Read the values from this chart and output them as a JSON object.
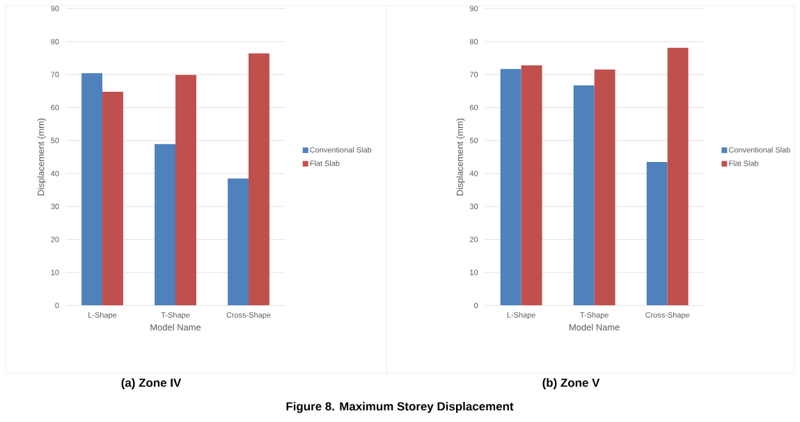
{
  "chart_data": [
    {
      "type": "bar",
      "title": "(a) Zone IV",
      "xlabel": "Model Name",
      "ylabel": "Displacement (mm)",
      "categories": [
        "L-Shape",
        "T-Shape",
        "Cross-Shape"
      ],
      "series": [
        {
          "name": "Conventional Slab",
          "color": "#4f81bd",
          "values": [
            70.4,
            48.9,
            38.5
          ]
        },
        {
          "name": "Flat Slab",
          "color": "#c0504d",
          "values": [
            64.8,
            69.9,
            76.4
          ]
        }
      ],
      "ylim": [
        0,
        90
      ],
      "yticks": [
        0,
        10,
        20,
        30,
        40,
        50,
        60,
        70,
        80,
        90
      ],
      "grid": "y",
      "legend": "right",
      "annotations": [
        "Figure 8. Maximum Storey Displacement"
      ]
    },
    {
      "type": "bar",
      "title": "(b) Zone V",
      "xlabel": "Model Name",
      "ylabel": "Displacement (mm)",
      "categories": [
        "L-Shape",
        "T-Shape",
        "Cross-Shape"
      ],
      "series": [
        {
          "name": "Conventional Slab",
          "color": "#4f81bd",
          "values": [
            71.7,
            66.7,
            43.5
          ]
        },
        {
          "name": "Flat Slab",
          "color": "#c0504d",
          "values": [
            72.8,
            71.5,
            78.1
          ]
        }
      ],
      "ylim": [
        0,
        90
      ],
      "yticks": [
        0,
        10,
        20,
        30,
        40,
        50,
        60,
        70,
        80,
        90
      ],
      "grid": "y",
      "legend": "right"
    }
  ]
}
